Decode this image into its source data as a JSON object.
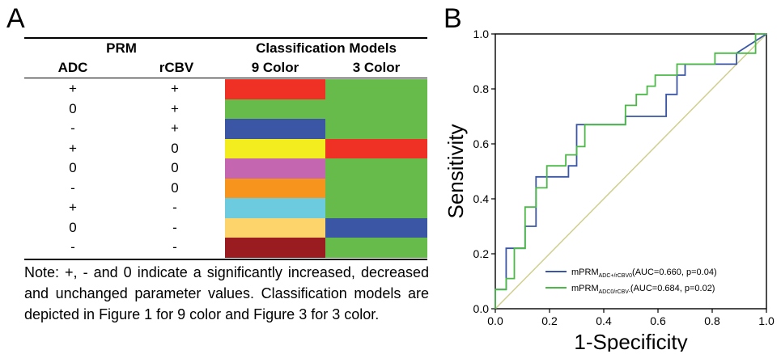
{
  "panel_a": {
    "letter": "A",
    "group_headers": {
      "prm": "PRM",
      "models": "Classification Models"
    },
    "col_headers": {
      "adc": "ADC",
      "rcbv": "rCBV",
      "nine": "9 Color",
      "three": "3 Color"
    },
    "rows": [
      {
        "adc": "+",
        "rcbv": "+",
        "nine": "#ee3124",
        "three": "#66bb4a"
      },
      {
        "adc": "0",
        "rcbv": "+",
        "nine": "#66bb4a",
        "three": "#66bb4a"
      },
      {
        "adc": "-",
        "rcbv": "+",
        "nine": "#3a56a5",
        "three": "#66bb4a"
      },
      {
        "adc": "+",
        "rcbv": "0",
        "nine": "#f3ec1e",
        "three": "#ee3124"
      },
      {
        "adc": "0",
        "rcbv": "0",
        "nine": "#c466b0",
        "three": "#66bb4a"
      },
      {
        "adc": "-",
        "rcbv": "0",
        "nine": "#f7941d",
        "three": "#66bb4a"
      },
      {
        "adc": "+",
        "rcbv": "-",
        "nine": "#6dcbe0",
        "three": "#66bb4a"
      },
      {
        "adc": "0",
        "rcbv": "-",
        "nine": "#fdd46c",
        "three": "#3a56a5"
      },
      {
        "adc": "-",
        "rcbv": "-",
        "nine": "#9b1c20",
        "three": "#66bb4a"
      }
    ],
    "note": "Note: +, - and 0 indicate a significantly increased, decreased and unchanged parameter values. Classification models are depicted in Figure 1 for 9 color and Figure 3 for 3 color."
  },
  "panel_b": {
    "letter": "B",
    "chart_data": {
      "type": "line",
      "xlabel": "1-Specificity",
      "ylabel": "Sensitivity",
      "xlim": [
        0,
        1
      ],
      "ylim": [
        0,
        1
      ],
      "xticks": [
        "0.0",
        "0.2",
        "0.4",
        "0.6",
        "0.8",
        "1.0"
      ],
      "yticks": [
        "0.0",
        "0.2",
        "0.4",
        "0.6",
        "0.8",
        "1.0"
      ],
      "legend_position": "bottom-right",
      "series": [
        {
          "name_main": "mPRM",
          "name_sub": "ADC+/rCBV0",
          "name_tail": "(AUC=0.660, p=0.04)",
          "color": "#3a56a5",
          "x": [
            0,
            0,
            0.04,
            0.04,
            0.11,
            0.11,
            0.15,
            0.15,
            0.27,
            0.27,
            0.3,
            0.3,
            0.48,
            0.48,
            0.63,
            0.63,
            0.67,
            0.67,
            0.7,
            0.7,
            0.89,
            0.89,
            1.0
          ],
          "y": [
            0,
            0.07,
            0.07,
            0.22,
            0.22,
            0.3,
            0.3,
            0.48,
            0.48,
            0.52,
            0.52,
            0.67,
            0.67,
            0.7,
            0.7,
            0.78,
            0.78,
            0.85,
            0.85,
            0.89,
            0.89,
            0.93,
            1.0
          ]
        },
        {
          "name_main": "mPRM",
          "name_sub": "ADC0/rCBV-",
          "name_tail": "(AUC=0.684, p=0.02)",
          "color": "#4cb848",
          "x": [
            0,
            0,
            0.04,
            0.04,
            0.07,
            0.07,
            0.11,
            0.11,
            0.15,
            0.15,
            0.19,
            0.19,
            0.26,
            0.26,
            0.3,
            0.3,
            0.33,
            0.33,
            0.48,
            0.48,
            0.52,
            0.52,
            0.56,
            0.56,
            0.59,
            0.59,
            0.67,
            0.67,
            0.81,
            0.81,
            0.89,
            0.89,
            0.96,
            0.96,
            1.0
          ],
          "y": [
            0,
            0.07,
            0.07,
            0.11,
            0.11,
            0.22,
            0.22,
            0.37,
            0.37,
            0.44,
            0.44,
            0.52,
            0.52,
            0.56,
            0.56,
            0.59,
            0.59,
            0.67,
            0.67,
            0.74,
            0.74,
            0.78,
            0.78,
            0.81,
            0.81,
            0.85,
            0.85,
            0.89,
            0.89,
            0.93,
            0.93,
            0.93,
            0.93,
            1.0,
            1.0
          ]
        }
      ],
      "reference_color": "#cfcf8f"
    }
  }
}
